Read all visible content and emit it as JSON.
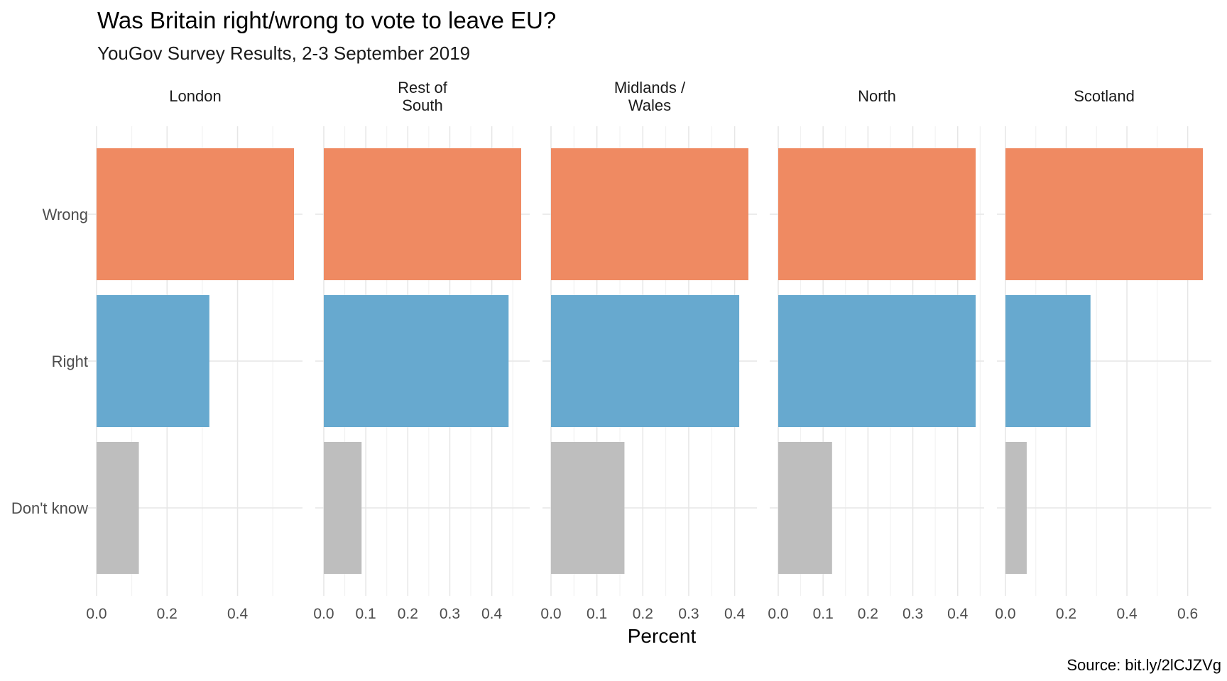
{
  "chart_data": {
    "type": "bar",
    "orientation": "horizontal",
    "title": "Was Britain right/wrong to vote to leave EU?",
    "subtitle": "YouGov Survey Results, 2-3 September 2019",
    "xlabel": "Percent",
    "ylabel": "",
    "caption": "Source: bit.ly/2lCJZVg",
    "categories": [
      "Wrong",
      "Right",
      "Don't know"
    ],
    "colors": {
      "Wrong": "#ef8a62",
      "Right": "#67a9cf",
      "Don't know": "#bebebe"
    },
    "grid": true,
    "legend": "none",
    "facets": [
      {
        "label": "London",
        "xlim": [
          0,
          0.56
        ],
        "ticks": [
          "0.0",
          "0.2",
          "0.4"
        ],
        "values": [
          0.56,
          0.32,
          0.12
        ]
      },
      {
        "label": "Rest of\nSouth",
        "xlim": [
          0,
          0.47
        ],
        "ticks": [
          "0.0",
          "0.1",
          "0.2",
          "0.3",
          "0.4"
        ],
        "values": [
          0.47,
          0.44,
          0.09
        ]
      },
      {
        "label": "Midlands /\nWales",
        "xlim": [
          0,
          0.43
        ],
        "ticks": [
          "0.0",
          "0.1",
          "0.2",
          "0.3",
          "0.4"
        ],
        "values": [
          0.43,
          0.41,
          0.16
        ]
      },
      {
        "label": "North",
        "xlim": [
          0,
          0.44
        ],
        "ticks": [
          "0.0",
          "0.1",
          "0.2",
          "0.3",
          "0.4"
        ],
        "values": [
          0.44,
          0.44,
          0.12
        ]
      },
      {
        "label": "Scotland",
        "xlim": [
          0,
          0.65
        ],
        "ticks": [
          "0.0",
          "0.2",
          "0.4",
          "0.6"
        ],
        "values": [
          0.65,
          0.28,
          0.07
        ]
      }
    ]
  }
}
